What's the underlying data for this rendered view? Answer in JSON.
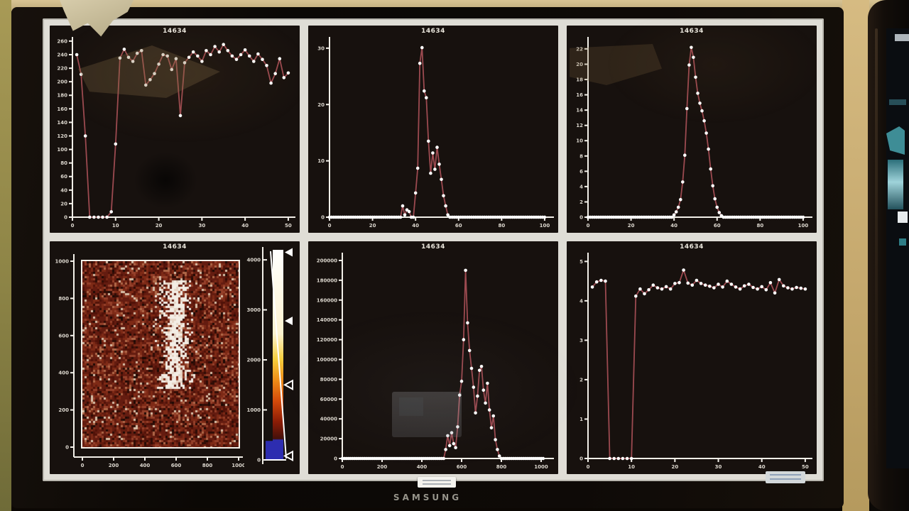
{
  "monitor": {
    "brand": "SAMSUNG"
  },
  "chart_data": [
    {
      "type": "line",
      "title": "14634",
      "position": "top-left",
      "xlim": [
        0,
        51
      ],
      "ylim": [
        0,
        262
      ],
      "xticks": [
        0,
        10,
        20,
        30,
        40,
        50
      ],
      "yticks": [
        0,
        20,
        40,
        60,
        80,
        100,
        120,
        140,
        160,
        180,
        200,
        220,
        240,
        260
      ],
      "x0": 1,
      "dx": 1,
      "y": [
        240,
        211,
        120,
        0,
        0,
        0,
        0,
        0,
        8,
        108,
        235,
        248,
        236,
        230,
        242,
        246,
        195,
        203,
        212,
        226,
        240,
        238,
        218,
        234,
        150,
        228,
        236,
        244,
        238,
        230,
        246,
        240,
        252,
        244,
        255,
        246,
        238,
        233,
        240,
        247,
        238,
        230,
        241,
        233,
        224,
        198,
        212,
        234,
        206,
        213
      ],
      "line_color": "#9c4a50",
      "marker_color": "#ffffff",
      "grid": false,
      "legend": null
    },
    {
      "type": "line",
      "title": "14634",
      "position": "top-middle",
      "xlim": [
        0,
        103
      ],
      "ylim": [
        0,
        31.5
      ],
      "xticks": [
        0,
        20,
        40,
        60,
        80,
        100
      ],
      "yticks": [
        0,
        10,
        20,
        30
      ],
      "x0": 0,
      "dx": 1,
      "y": [
        0,
        0,
        0,
        0,
        0,
        0,
        0,
        0,
        0,
        0,
        0,
        0,
        0,
        0,
        0,
        0,
        0,
        0,
        0,
        0,
        0,
        0,
        0,
        0,
        0,
        0,
        0,
        0,
        0,
        0,
        0,
        0,
        0,
        0,
        2,
        0.4,
        1.3,
        1.0,
        0,
        0,
        4.3,
        8.7,
        27.3,
        30.1,
        22.4,
        21.2,
        13.5,
        7.8,
        11.4,
        8.5,
        12.4,
        9.4,
        6.7,
        3.8,
        2.0,
        0.4,
        0,
        0,
        0,
        0,
        0,
        0,
        0,
        0,
        0,
        0,
        0,
        0,
        0,
        0,
        0,
        0,
        0,
        0,
        0,
        0,
        0,
        0,
        0,
        0,
        0,
        0,
        0,
        0,
        0,
        0,
        0,
        0,
        0,
        0,
        0,
        0,
        0,
        0,
        0,
        0,
        0,
        0,
        0,
        0,
        0
      ],
      "line_color": "#9c4a50",
      "marker_color": "#ffffff",
      "grid": false,
      "legend": null
    },
    {
      "type": "line",
      "title": "14634",
      "position": "top-right",
      "xlim": [
        0,
        103
      ],
      "ylim": [
        0,
        23.2
      ],
      "xticks": [
        0,
        20,
        40,
        60,
        80,
        100
      ],
      "yticks": [
        0,
        2,
        4,
        6,
        8,
        10,
        12,
        14,
        16,
        18,
        20,
        22
      ],
      "x0": 0,
      "dx": 1,
      "y": [
        0,
        0,
        0,
        0,
        0,
        0,
        0,
        0,
        0,
        0,
        0,
        0,
        0,
        0,
        0,
        0,
        0,
        0,
        0,
        0,
        0,
        0,
        0,
        0,
        0,
        0,
        0,
        0,
        0,
        0,
        0,
        0,
        0,
        0,
        0,
        0,
        0,
        0,
        0,
        0,
        0.3,
        0.7,
        1.3,
        2.3,
        4.6,
        8.1,
        14.2,
        19.9,
        22.2,
        20.9,
        18.3,
        16.2,
        14.9,
        13.9,
        12.6,
        11.0,
        8.9,
        6.3,
        4.1,
        2.4,
        1.3,
        0.6,
        0.2,
        0,
        0,
        0,
        0,
        0,
        0,
        0,
        0,
        0,
        0,
        0,
        0,
        0,
        0,
        0,
        0,
        0,
        0,
        0,
        0,
        0,
        0,
        0,
        0,
        0,
        0,
        0,
        0,
        0,
        0,
        0,
        0,
        0,
        0,
        0,
        0,
        0,
        0
      ],
      "line_color": "#9c4a50",
      "marker_color": "#ffffff",
      "grid": false,
      "legend": null
    },
    {
      "type": "heatmap",
      "title": "14634",
      "position": "bottom-left",
      "xlim": [
        0,
        1050
      ],
      "ylim": [
        0,
        1050
      ],
      "xticks": [
        0,
        200,
        400,
        600,
        800,
        1000
      ],
      "yticks": [
        0,
        200,
        400,
        600,
        800,
        1000
      ],
      "noise_palette": [
        [
          "#641c10",
          30
        ],
        [
          "#7e2a16",
          20
        ],
        [
          "#511208",
          15
        ],
        [
          "#95402a",
          12
        ],
        [
          "#2f0d06",
          10
        ],
        [
          "#b06848",
          6
        ],
        [
          "#d8c0a8",
          4
        ],
        [
          "#1d0a05",
          3
        ]
      ],
      "streak": {
        "x_center": 590,
        "x_sigma": 50,
        "y_from": 320,
        "y_to": 900
      },
      "colorbar": {
        "ticks": [
          0,
          1000,
          2000,
          3000,
          4000
        ],
        "max": 4200,
        "gradient_stops": [
          [
            0,
            "#ffffff"
          ],
          [
            0.4,
            "#fdf3d0"
          ],
          [
            0.52,
            "#f6cf3e"
          ],
          [
            0.62,
            "#ee8d18"
          ],
          [
            0.72,
            "#d44a0a"
          ],
          [
            0.82,
            "#8a1c06"
          ],
          [
            0.9,
            "#43100a"
          ],
          [
            0.905,
            "#2f2fae"
          ],
          [
            1,
            "#2b2ba8"
          ]
        ],
        "handles": [
          {
            "value": 4150,
            "filled": true
          },
          {
            "value": 2780,
            "filled": true
          },
          {
            "value": 1500,
            "filled": false
          },
          {
            "value": 80,
            "filled": false
          }
        ]
      }
    },
    {
      "type": "line",
      "title": "14634",
      "position": "bottom-middle",
      "xlim": [
        0,
        1050
      ],
      "ylim": [
        0,
        205000
      ],
      "xticks": [
        0,
        200,
        400,
        600,
        800,
        1000
      ],
      "yticks": [
        0,
        20000,
        40000,
        60000,
        80000,
        100000,
        120000,
        140000,
        160000,
        180000,
        200000
      ],
      "x0": 0,
      "dx": 10,
      "y": [
        0,
        0,
        0,
        0,
        0,
        0,
        0,
        0,
        0,
        0,
        0,
        0,
        0,
        0,
        0,
        0,
        0,
        0,
        0,
        0,
        0,
        0,
        0,
        0,
        0,
        0,
        0,
        0,
        0,
        0,
        0,
        0,
        0,
        0,
        0,
        0,
        0,
        0,
        0,
        0,
        0,
        0,
        0,
        0,
        0,
        0,
        0,
        0,
        0,
        0,
        0,
        0,
        9000,
        23000,
        13000,
        26000,
        15000,
        11000,
        32000,
        64000,
        78000,
        120000,
        190000,
        137000,
        109000,
        91000,
        72000,
        46000,
        63000,
        89000,
        93000,
        69000,
        56000,
        76000,
        49000,
        31000,
        43000,
        19000,
        9000,
        2500,
        0,
        0,
        0,
        0,
        0,
        0,
        0,
        0,
        0,
        0,
        0,
        0,
        0,
        0,
        0,
        0,
        0,
        0,
        0,
        0,
        0,
        0
      ],
      "line_color": "#9c4a50",
      "marker_color": "#ffffff",
      "grid": false,
      "legend": null
    },
    {
      "type": "line",
      "title": "14634",
      "position": "bottom-right",
      "xlim": [
        0,
        51
      ],
      "ylim": [
        0,
        5.15
      ],
      "xticks": [
        0,
        10,
        20,
        30,
        40,
        50
      ],
      "yticks": [
        0,
        1,
        2,
        3,
        4,
        5
      ],
      "x0": 1,
      "dx": 1,
      "y": [
        4.35,
        4.48,
        4.52,
        4.5,
        0,
        0,
        0,
        0,
        0,
        0,
        4.12,
        4.3,
        4.18,
        4.28,
        4.4,
        4.33,
        4.3,
        4.36,
        4.3,
        4.44,
        4.46,
        4.78,
        4.45,
        4.4,
        4.52,
        4.44,
        4.4,
        4.37,
        4.33,
        4.42,
        4.35,
        4.5,
        4.42,
        4.35,
        4.3,
        4.38,
        4.42,
        4.34,
        4.3,
        4.36,
        4.28,
        4.46,
        4.2,
        4.54,
        4.38,
        4.33,
        4.3,
        4.34,
        4.32,
        4.3
      ],
      "line_color": "#9c4a50",
      "marker_color": "#ffffff",
      "grid": false,
      "legend": null
    }
  ]
}
